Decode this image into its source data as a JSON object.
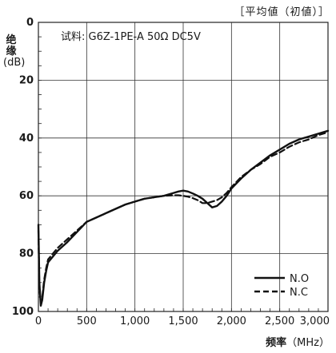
{
  "chart_data": {
    "type": "line",
    "corner_note": "［平均値（初値）］",
    "annotation": "试料: G6Z-1PE-A  50Ω  DC5V",
    "ylabel_chars": [
      "绝",
      "缘"
    ],
    "ylabel_unit": "(dB)",
    "xlabel": "频率",
    "xlabel_unit": "（MHz）",
    "xlim": [
      0,
      3000
    ],
    "ylim": [
      0,
      100
    ],
    "y_inverted": true,
    "grid": true,
    "x_ticks": [
      0,
      500,
      1000,
      1500,
      2000,
      2500,
      3000
    ],
    "x_tick_labels": [
      "0",
      "500",
      "1,000",
      "1,500",
      "2,000",
      "2,500",
      "3,000"
    ],
    "y_ticks": [
      0,
      20,
      40,
      60,
      80,
      100
    ],
    "y_tick_labels": [
      "0",
      "20",
      "40",
      "60",
      "80",
      "100"
    ],
    "legend_position": "bottom-right",
    "series": [
      {
        "name": "N.O",
        "style": "solid",
        "x": [
          0,
          10,
          25,
          40,
          60,
          80,
          100,
          150,
          200,
          300,
          400,
          500,
          600,
          700,
          800,
          900,
          1000,
          1100,
          1200,
          1300,
          1400,
          1450,
          1500,
          1550,
          1600,
          1650,
          1700,
          1750,
          1800,
          1850,
          1900,
          1950,
          2000,
          2100,
          2200,
          2300,
          2400,
          2500,
          2600,
          2700,
          2800,
          2900,
          3000
        ],
        "y": [
          70,
          90,
          98,
          96,
          90,
          86,
          83,
          81,
          79,
          76,
          72.5,
          69,
          67.5,
          66,
          64.5,
          63,
          62,
          61,
          60.5,
          60,
          59,
          58.5,
          58.2,
          58.5,
          59.2,
          60,
          61,
          62.5,
          64,
          63.5,
          62,
          60,
          57.5,
          54,
          51,
          48.5,
          46,
          44,
          42,
          40.5,
          39.5,
          38.5,
          37.5
        ]
      },
      {
        "name": "N.C",
        "style": "dashed",
        "x": [
          0,
          10,
          25,
          40,
          60,
          80,
          100,
          150,
          200,
          300,
          400,
          500,
          600,
          700,
          800,
          900,
          1000,
          1100,
          1200,
          1300,
          1400,
          1450,
          1500,
          1550,
          1600,
          1650,
          1700,
          1750,
          1800,
          1850,
          1900,
          1950,
          2000,
          2100,
          2200,
          2300,
          2400,
          2500,
          2600,
          2700,
          2800,
          2900,
          3000
        ],
        "y": [
          72,
          92,
          97,
          95,
          89,
          85,
          82,
          80,
          78,
          75,
          72,
          69,
          67.5,
          66,
          64.5,
          63,
          62,
          61,
          60.5,
          60,
          59.8,
          59.8,
          60,
          60.3,
          60.8,
          61.5,
          62.5,
          62.5,
          62,
          61.5,
          60.5,
          59,
          57,
          53.5,
          51,
          49,
          46.5,
          45,
          43,
          41.5,
          40.5,
          39,
          38
        ]
      }
    ]
  }
}
